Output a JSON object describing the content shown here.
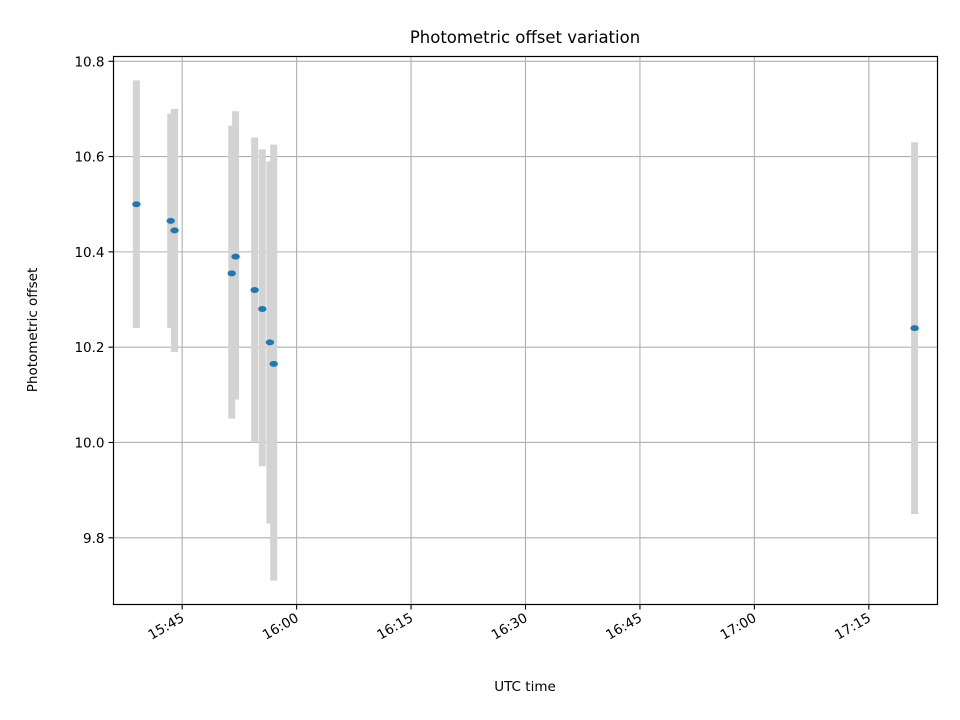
{
  "chart_data": {
    "type": "scatter",
    "title": "Photometric offset variation",
    "xlabel": "UTC time",
    "ylabel": "Photometric offset",
    "x_ticks": [
      "15:45",
      "16:00",
      "16:15",
      "16:30",
      "16:45",
      "17:00",
      "17:15"
    ],
    "y_ticks": [
      "9.8",
      "10.0",
      "10.2",
      "10.4",
      "10.6",
      "10.8"
    ],
    "xlim": [
      "15:36",
      "17:24"
    ],
    "ylim": [
      9.66,
      10.81
    ],
    "grid": true,
    "marker_color": "#1f77b4",
    "errorbar_color": "#d3d3d3",
    "points": [
      {
        "time": "15:39:00",
        "y": 10.5,
        "err_low": 10.24,
        "err_high": 10.76
      },
      {
        "time": "15:43:30",
        "y": 10.465,
        "err_low": 10.24,
        "err_high": 10.69
      },
      {
        "time": "15:44:00",
        "y": 10.445,
        "err_low": 10.19,
        "err_high": 10.7
      },
      {
        "time": "15:51:30",
        "y": 10.355,
        "err_low": 10.05,
        "err_high": 10.665
      },
      {
        "time": "15:52:00",
        "y": 10.39,
        "err_low": 10.09,
        "err_high": 10.695
      },
      {
        "time": "15:54:30",
        "y": 10.32,
        "err_low": 10.0,
        "err_high": 10.64
      },
      {
        "time": "15:55:30",
        "y": 10.28,
        "err_low": 9.95,
        "err_high": 10.615
      },
      {
        "time": "15:56:30",
        "y": 10.21,
        "err_low": 9.83,
        "err_high": 10.59
      },
      {
        "time": "15:57:00",
        "y": 10.165,
        "err_low": 9.71,
        "err_high": 10.625
      },
      {
        "time": "17:21:00",
        "y": 10.24,
        "err_low": 9.85,
        "err_high": 10.63
      }
    ]
  }
}
